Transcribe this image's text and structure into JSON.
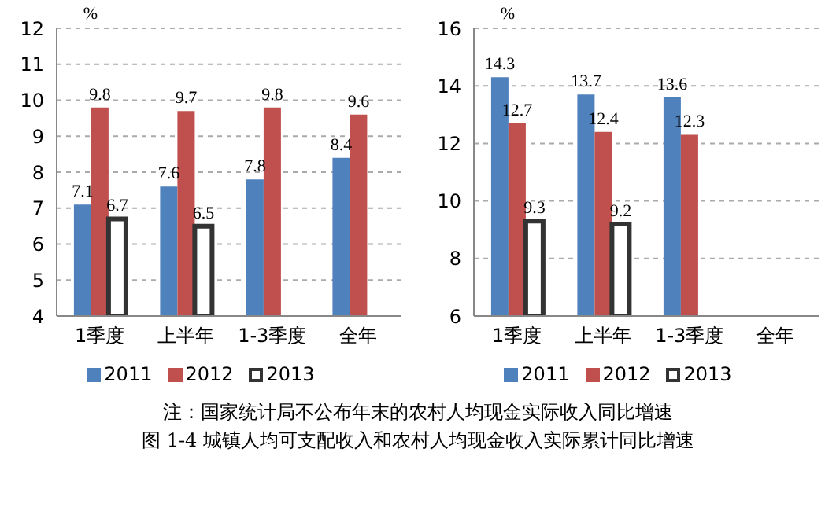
{
  "chart_data": [
    {
      "type": "bar",
      "ylabel": "%",
      "categories": [
        "1季度",
        "上半年",
        "1-3季度",
        "全年"
      ],
      "ylim": [
        4,
        12
      ],
      "yticks": [
        4,
        5,
        6,
        7,
        8,
        9,
        10,
        11,
        12
      ],
      "grid": "y",
      "legend": "bottom",
      "data_labels": true,
      "series": [
        {
          "name": "2011",
          "color": "#4f81bd",
          "values": [
            7.1,
            7.6,
            7.8,
            8.4
          ]
        },
        {
          "name": "2012",
          "color": "#c0504d",
          "values": [
            9.8,
            9.7,
            9.8,
            9.6
          ]
        },
        {
          "name": "2013",
          "color": "#333333",
          "type": "bar",
          "values": [
            6.7,
            6.5,
            null,
            null
          ]
        }
      ]
    },
    {
      "type": "bar",
      "ylabel": "%",
      "categories": [
        "1季度",
        "上半年",
        "1-3季度",
        "全年"
      ],
      "ylim": [
        6,
        16
      ],
      "yticks": [
        6,
        8,
        10,
        12,
        14,
        16
      ],
      "grid": "y",
      "legend": "bottom",
      "data_labels": true,
      "series": [
        {
          "name": "2011",
          "color": "#4f81bd",
          "values": [
            14.3,
            13.7,
            13.6,
            null
          ]
        },
        {
          "name": "2012",
          "color": "#c0504d",
          "values": [
            12.7,
            12.4,
            12.3,
            null
          ]
        },
        {
          "name": "2013",
          "color": "#333333",
          "type": "bar",
          "values": [
            9.3,
            9.2,
            null,
            null
          ]
        }
      ]
    },
    {
      "type": "other",
      "annotations": [
        "注：国家统计局不公布年末的农村人均现金实际收入同比增速",
        "图 1-4 城镇人均可支配收入和农村人均现金收入实际累计同比增速"
      ]
    }
  ]
}
